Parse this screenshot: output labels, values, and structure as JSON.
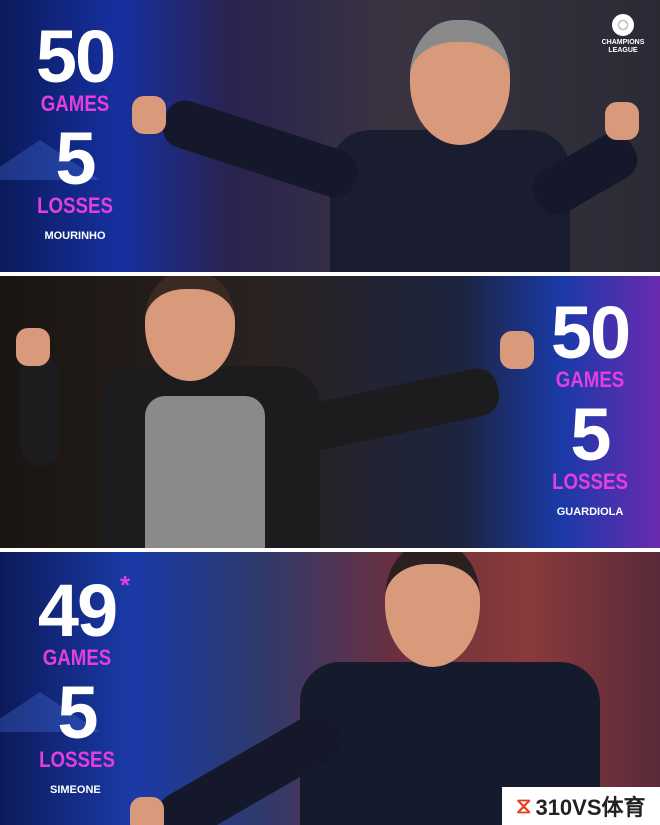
{
  "logo": {
    "line1": "CHAMPIONS",
    "line2": "LEAGUE"
  },
  "panels": [
    {
      "coach": "MOURINHO",
      "games": "50",
      "games_label": "GAMES",
      "losses": "5",
      "losses_label": "LOSSES"
    },
    {
      "coach": "GUARDIOLA",
      "games": "50",
      "games_label": "GAMES",
      "losses": "5",
      "losses_label": "LOSSES"
    },
    {
      "coach": "SIMEONE",
      "games": "49",
      "games_asterisk": "*",
      "games_label": "GAMES",
      "losses": "5",
      "losses_label": "LOSSES"
    }
  ],
  "watermark": {
    "text": "310VS体育"
  },
  "colors": {
    "accent": "#e43ee0",
    "number": "#ffffff"
  }
}
